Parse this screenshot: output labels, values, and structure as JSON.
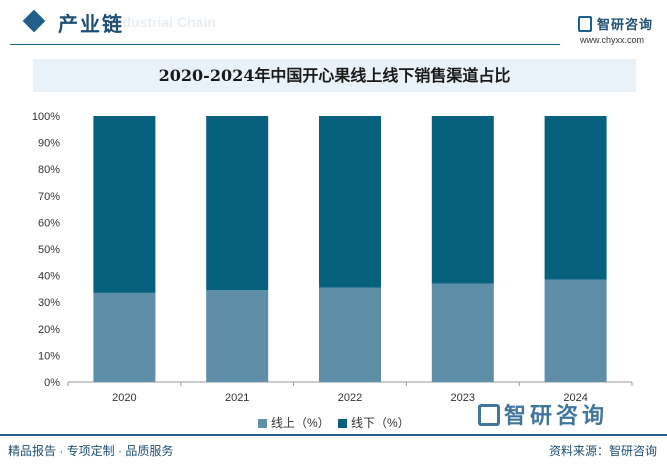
{
  "header": {
    "section_title": "产业链",
    "background_text": "Industrial Chain",
    "logo_name": "智研咨询",
    "logo_url": "www.chyxx.com"
  },
  "footer": {
    "left_text": "精品报告 · 专项定制 · 品质服务",
    "source_text": "资料来源：智研咨询"
  },
  "watermark": {
    "logo_text": "智研咨询"
  },
  "colors": {
    "online": "#5f8fa8",
    "offline": "#08607f",
    "accent": "#1f5f8a"
  },
  "chart_data": {
    "type": "bar",
    "stacked": true,
    "title": "2020-2024年中国开心果线上线下销售渠道占比",
    "categories": [
      "2020",
      "2021",
      "2022",
      "2023",
      "2024"
    ],
    "series": [
      {
        "name": "线上（%）",
        "values": [
          33.5,
          34.5,
          35.5,
          37.0,
          38.5
        ]
      },
      {
        "name": "线下（%）",
        "values": [
          66.5,
          65.5,
          64.5,
          63.0,
          61.5
        ]
      }
    ],
    "ylim": [
      0,
      100
    ],
    "yticks": [
      "0%",
      "10%",
      "20%",
      "30%",
      "40%",
      "50%",
      "60%",
      "70%",
      "80%",
      "90%",
      "100%"
    ],
    "xlabel": "",
    "ylabel": "",
    "legend_position": "bottom",
    "grid": false
  }
}
